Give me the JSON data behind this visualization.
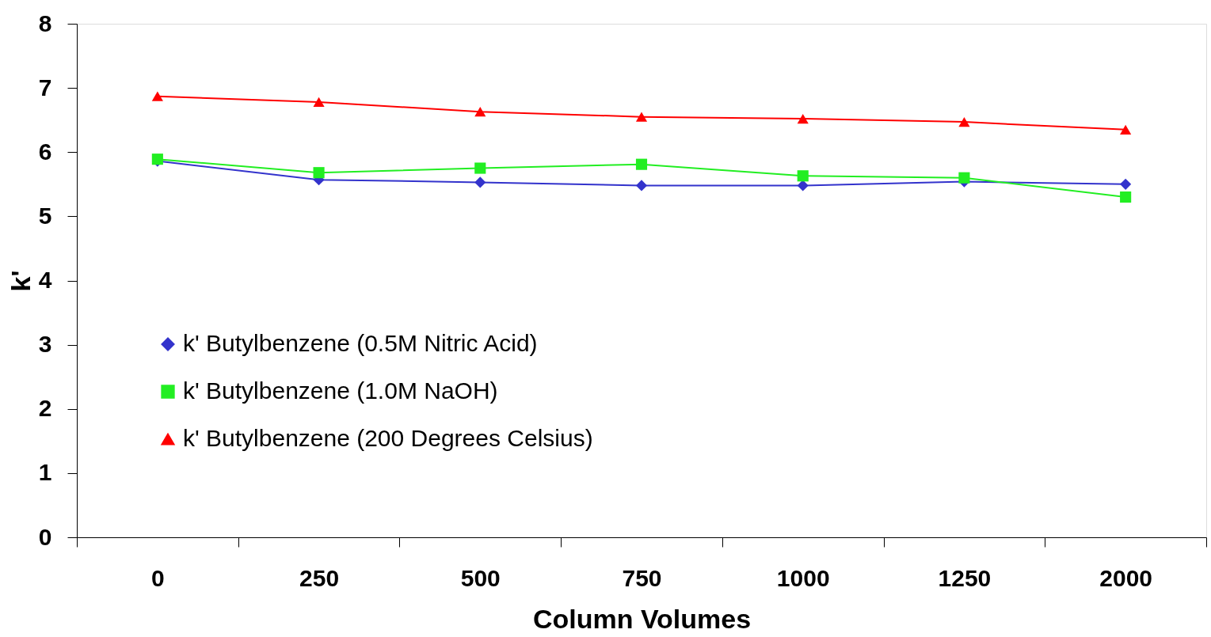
{
  "chart_data": {
    "type": "line",
    "xlabel": "Column Volumes",
    "ylabel": "k'",
    "categories": [
      "0",
      "250",
      "500",
      "750",
      "1000",
      "1250",
      "2000"
    ],
    "ylim": [
      0,
      8
    ],
    "yticks": [
      0,
      1,
      2,
      3,
      4,
      5,
      6,
      7,
      8
    ],
    "grid": false,
    "legend": "bottom left",
    "line_style": "solid",
    "series": [
      {
        "name": "k' Butylbenzene (0.5M Nitric Acid)",
        "color": "#3333cc",
        "marker": "diamond",
        "values": [
          5.86,
          5.57,
          5.53,
          5.48,
          5.48,
          5.54,
          5.5
        ]
      },
      {
        "name": "k' Butylbenzene (1.0M NaOH)",
        "color": "#22ee22",
        "marker": "square",
        "values": [
          5.89,
          5.68,
          5.75,
          5.81,
          5.63,
          5.6,
          5.3
        ]
      },
      {
        "name": "k' Butylbenzene (200 Degrees Celsius)",
        "color": "#ff0000",
        "marker": "triangle",
        "values": [
          6.87,
          6.78,
          6.63,
          6.55,
          6.52,
          6.47,
          6.35
        ]
      }
    ]
  }
}
